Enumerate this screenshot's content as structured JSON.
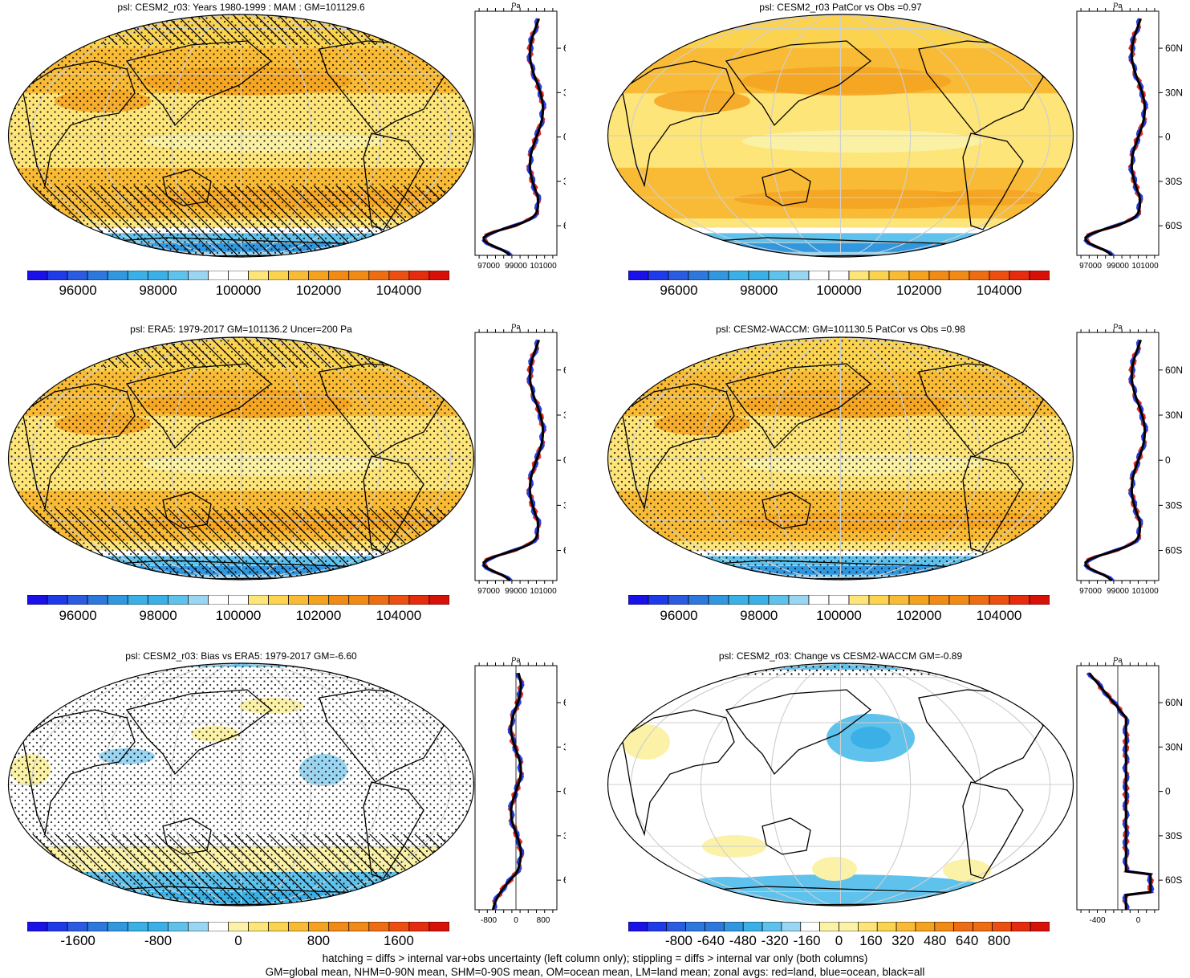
{
  "panels": [
    {
      "title": "psl: CESM2_r03: Years 1980-1999 : MAM : GM=101129.6",
      "kind": "abs",
      "hatch": true,
      "stipple": true
    },
    {
      "title": "psl: CESM2_r03 PatCor vs Obs =0.97",
      "kind": "abs",
      "hatch": false,
      "stipple": false
    },
    {
      "title": "psl: ERA5: 1979-2017 GM=101136.2 Uncer=200 Pa",
      "kind": "abs",
      "hatch": true,
      "stipple": true
    },
    {
      "title": "psl: CESM2-WACCM: GM=101130.5 PatCor vs Obs =0.98",
      "kind": "abs",
      "hatch": false,
      "stipple": true
    },
    {
      "title": "psl: CESM2_r03: Bias vs ERA5: 1979-2017 GM=-6.60",
      "kind": "diff",
      "hatch": true,
      "stipple": true
    },
    {
      "title": "psl: CESM2_r03: Change vs CESM2-WACCM GM=-0.89",
      "kind": "change",
      "hatch": false,
      "stipple": true
    }
  ],
  "zonal_unit": "Pa",
  "lat_ticks": [
    "60N",
    "30N",
    "0",
    "30S",
    "60S"
  ],
  "zonal_x_ticks": {
    "abs": [
      "97000",
      "99000",
      "101000"
    ],
    "diff": [
      "-800",
      "0",
      "800"
    ],
    "change": [
      "-400",
      "0"
    ]
  },
  "colorbars": {
    "abs": {
      "labels": [
        "96000",
        "98000",
        "100000",
        "102000",
        "104000"
      ]
    },
    "diff": {
      "labels": [
        "-1600",
        "-800",
        "0",
        "800",
        "1600"
      ]
    },
    "change": {
      "labels": [
        "-800",
        "-640",
        "-480",
        "-320",
        "-160",
        "0",
        "160",
        "320",
        "480",
        "640",
        "800"
      ]
    }
  },
  "colors": {
    "palette": [
      "#1a10e8",
      "#1f3ae8",
      "#2a5be0",
      "#2d78dc",
      "#3197df",
      "#3ab0e6",
      "#5ec2ec",
      "#9ad5f2",
      "#ffffff",
      "#fbf2a8",
      "#fde57a",
      "#fcd34e",
      "#f9bb35",
      "#f5a21f",
      "#f28a16",
      "#ef6d12",
      "#ec4f10",
      "#e52c0e",
      "#d81108"
    ],
    "land": "#e03030",
    "ocean": "#2a3fe0",
    "all": "#000000"
  },
  "footnote": {
    "line1": "hatching = diffs > internal var+obs uncertainty (left column only); stippling = diffs > internal var only (both columns)",
    "line2": "GM=global mean, NHM=0-90N mean, SHM=0-90S mean, OM=ocean mean, LM=land mean; zonal avgs: red=land, blue=ocean, black=all"
  }
}
